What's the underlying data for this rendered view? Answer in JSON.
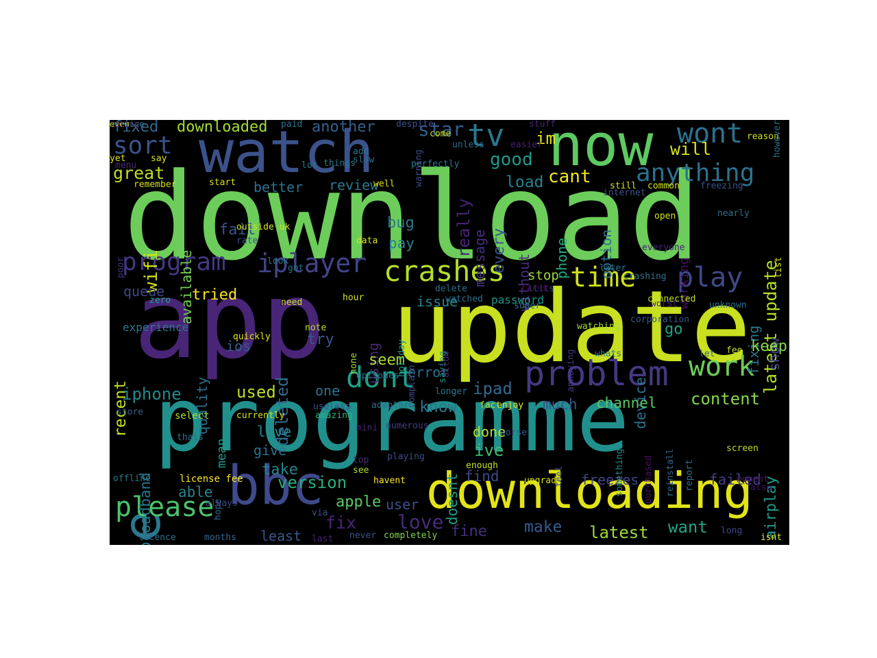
{
  "colors": {
    "background": "#000000",
    "page": "#ffffff"
  },
  "words": [
    {
      "text": "download",
      "color": "#6ccd5a"
    },
    {
      "text": "app",
      "color": "#482576"
    },
    {
      "text": "update",
      "color": "#c8e020"
    },
    {
      "text": "programme",
      "color": "#21908d"
    },
    {
      "text": "watch",
      "color": "#3b528b"
    },
    {
      "text": "now",
      "color": "#5ec962"
    },
    {
      "text": "downloading",
      "color": "#e2e418"
    },
    {
      "text": "bbc",
      "color": "#3e4a89"
    },
    {
      "text": "use",
      "color": "#2a788e"
    },
    {
      "text": "problem",
      "color": "#443983"
    },
    {
      "text": "crashes",
      "color": "#b5de2b"
    },
    {
      "text": "iplayer",
      "color": "#414487"
    },
    {
      "text": "program",
      "color": "#453781"
    },
    {
      "text": "time",
      "color": "#d0e11c"
    },
    {
      "text": "play",
      "color": "#3e4989"
    },
    {
      "text": "please",
      "color": "#4ac16d"
    },
    {
      "text": "dont",
      "color": "#1fa188"
    },
    {
      "text": "work",
      "color": "#6ece58"
    },
    {
      "text": "tv",
      "color": "#2a768e"
    },
    {
      "text": "wont",
      "color": "#2d708e"
    },
    {
      "text": "anything",
      "color": "#2c718e"
    },
    {
      "text": "latest update",
      "color": "#b5de2b"
    },
    {
      "text": "airplay",
      "color": "#1f9a8a"
    },
    {
      "text": "sort",
      "color": "#3b528b"
    },
    {
      "text": "fixed",
      "color": "#31688e"
    },
    {
      "text": "downloaded",
      "color": "#a5db36"
    },
    {
      "text": "another",
      "color": "#34608d"
    },
    {
      "text": "star",
      "color": "#355f8d"
    },
    {
      "text": "im",
      "color": "#e5e419"
    },
    {
      "text": "good",
      "color": "#1f988b"
    },
    {
      "text": "will",
      "color": "#d5e21a"
    },
    {
      "text": "great",
      "color": "#c0df25"
    },
    {
      "text": "cant",
      "color": "#f1e51d"
    },
    {
      "text": "load",
      "color": "#26828e"
    },
    {
      "text": "review",
      "color": "#2a788e"
    },
    {
      "text": "better",
      "color": "#2d718e"
    },
    {
      "text": "really",
      "color": "#482475"
    },
    {
      "text": "message",
      "color": "#46307e"
    },
    {
      "text": "every",
      "color": "#3a548c"
    },
    {
      "text": "without",
      "color": "#472d7b"
    },
    {
      "text": "phone",
      "color": "#22a785"
    },
    {
      "text": "option",
      "color": "#2e6e8e"
    },
    {
      "text": "working",
      "color": "#471365"
    },
    {
      "text": "available",
      "color": "#75d054"
    },
    {
      "text": "wifi",
      "color": "#d2e21b"
    },
    {
      "text": "fail",
      "color": "#3b528b"
    },
    {
      "text": "bug",
      "color": "#2a788e"
    },
    {
      "text": "pay",
      "color": "#27808e"
    },
    {
      "text": "stop",
      "color": "#9dd93b"
    },
    {
      "text": "queue",
      "color": "#3f4788"
    },
    {
      "text": "tried",
      "color": "#fde725"
    },
    {
      "text": "issue",
      "color": "#24878e"
    },
    {
      "text": "password",
      "color": "#1f968b"
    },
    {
      "text": "using",
      "color": "#482878"
    },
    {
      "text": "fixing",
      "color": "#2a788e"
    },
    {
      "text": "show",
      "color": "#414487"
    },
    {
      "text": "recent",
      "color": "#c2df23"
    },
    {
      "text": "quality",
      "color": "#2c728e"
    },
    {
      "text": "deleted",
      "color": "#31678e"
    },
    {
      "text": "device",
      "color": "#2c718e"
    },
    {
      "text": "go",
      "color": "#20a386"
    },
    {
      "text": "keep",
      "color": "#86d549"
    },
    {
      "text": "ios",
      "color": "#355e8d"
    },
    {
      "text": "try",
      "color": "#39568c"
    },
    {
      "text": "seem",
      "color": "#addc30"
    },
    {
      "text": "iphone",
      "color": "#23898e"
    },
    {
      "text": "used",
      "color": "#bddf26"
    },
    {
      "text": "one",
      "color": "#2c718e"
    },
    {
      "text": "error",
      "color": "#2f6c8e"
    },
    {
      "text": "know",
      "color": "#2b758e"
    },
    {
      "text": "ipad",
      "color": "#31688e"
    },
    {
      "text": "doesnt",
      "color": "#1f9e89"
    },
    {
      "text": "channel",
      "color": "#5ac864"
    },
    {
      "text": "content",
      "color": "#86d549"
    },
    {
      "text": "much",
      "color": "#3b528b"
    },
    {
      "text": "broadband",
      "color": "#2a788e"
    },
    {
      "text": "mean",
      "color": "#1f9e89"
    },
    {
      "text": "live",
      "color": "#25848e"
    },
    {
      "text": "give",
      "color": "#2c718e"
    },
    {
      "text": "take",
      "color": "#24868e"
    },
    {
      "text": "done",
      "color": "#bddf26"
    },
    {
      "text": "ive",
      "color": "#40bd72"
    },
    {
      "text": "find",
      "color": "#3e4a89"
    },
    {
      "text": "freezes",
      "color": "#404688"
    },
    {
      "text": "failed",
      "color": "#433e85"
    },
    {
      "text": "able",
      "color": "#25848e"
    },
    {
      "text": "version",
      "color": "#29af7f"
    },
    {
      "text": "apple",
      "color": "#5cc863"
    },
    {
      "text": "user",
      "color": "#3b528b"
    },
    {
      "text": "fix",
      "color": "#482677"
    },
    {
      "text": "love",
      "color": "#472c7a"
    },
    {
      "text": "fine",
      "color": "#472f7d"
    },
    {
      "text": "make",
      "color": "#365c8d"
    },
    {
      "text": "latest",
      "color": "#a0da39"
    },
    {
      "text": "want",
      "color": "#20a486"
    },
    {
      "text": "least",
      "color": "#38588c"
    },
    {
      "text": "license fee",
      "color": "#fde725"
    },
    {
      "text": "hope",
      "color": "#31688e"
    },
    {
      "text": "always",
      "color": "#3f4889"
    },
    {
      "text": "licence",
      "color": "#2d708e"
    },
    {
      "text": "months",
      "color": "#31688e"
    },
    {
      "text": "last",
      "color": "#482173"
    },
    {
      "text": "never",
      "color": "#3a538b"
    },
    {
      "text": "completely",
      "color": "#84d44b"
    },
    {
      "text": "long",
      "color": "#404688"
    },
    {
      "text": "isnt",
      "color": "#e5e419"
    },
    {
      "text": "offline",
      "color": "#2a778e"
    },
    {
      "text": "via",
      "color": "#3b528b"
    },
    {
      "text": "upgrade",
      "color": "#d8e219"
    },
    {
      "text": "havent",
      "color": "#fde725"
    },
    {
      "text": "enough",
      "color": "#c5e021"
    },
    {
      "text": "see",
      "color": "#b0dd2f"
    },
    {
      "text": "top",
      "color": "#482979"
    },
    {
      "text": "playing",
      "color": "#3e4a89"
    },
    {
      "text": "screen",
      "color": "#bddf26"
    },
    {
      "text": "moment",
      "color": "#48186a"
    },
    {
      "text": "also",
      "color": "#471063"
    },
    {
      "text": "worse",
      "color": "#38588c"
    },
    {
      "text": "store",
      "color": "#365d8d"
    },
    {
      "text": "thats",
      "color": "#2c718e"
    },
    {
      "text": "select",
      "color": "#addc30"
    },
    {
      "text": "currently",
      "color": "#d2e21b"
    },
    {
      "text": "amazing",
      "color": "#2fb47c"
    },
    {
      "text": "useless",
      "color": "#3b528b"
    },
    {
      "text": "numerous",
      "color": "#433e85"
    },
    {
      "text": "mini",
      "color": "#482475"
    },
    {
      "text": "adaptor",
      "color": "#2d708e"
    },
    {
      "text": "enjoy",
      "color": "#e5e419"
    },
    {
      "text": "fact",
      "color": "#b5de2b"
    },
    {
      "text": "feel",
      "color": "#3b528b"
    },
    {
      "text": "something",
      "color": "#228c8d"
    },
    {
      "text": "purchased",
      "color": "#471365"
    },
    {
      "text": "reinstall",
      "color": "#31688e"
    },
    {
      "text": "report",
      "color": "#2c718e"
    },
    {
      "text": "experience",
      "color": "#2a788e"
    },
    {
      "text": "quickly",
      "color": "#e5e419"
    },
    {
      "text": "note",
      "color": "#bddf26"
    },
    {
      "text": "none",
      "color": "#9fda3a"
    },
    {
      "text": "holiday",
      "color": "#1f9a8a"
    },
    {
      "text": "complain",
      "color": "#3e4a89"
    },
    {
      "text": "episodes",
      "color": "#2d708e"
    },
    {
      "text": "longer",
      "color": "#2a778e"
    },
    {
      "text": "saying",
      "color": "#1f968b"
    },
    {
      "text": "allow",
      "color": "#482979"
    },
    {
      "text": "annoying",
      "color": "#443983"
    },
    {
      "text": "watching",
      "color": "#a5db36"
    },
    {
      "text": "whats",
      "color": "#2a788e"
    },
    {
      "text": "fee",
      "color": "#c2df23"
    },
    {
      "text": "let",
      "color": "#355f8d"
    },
    {
      "text": "zero",
      "color": "#1fa188"
    },
    {
      "text": "need",
      "color": "#c8e020"
    },
    {
      "text": "hour",
      "color": "#d0e11c"
    },
    {
      "text": "watched",
      "color": "#2c718e"
    },
    {
      "text": "delete",
      "color": "#2d708e"
    },
    {
      "text": "itits",
      "color": "#3f4788"
    },
    {
      "text": "super",
      "color": "#2a778e"
    },
    {
      "text": "worst",
      "color": "#482878"
    },
    {
      "text": "unknown",
      "color": "#2d708e"
    },
    {
      "text": "connected",
      "color": "#c2df23"
    },
    {
      "text": "crashing",
      "color": "#2c718e"
    },
    {
      "text": "first",
      "color": "#440154"
    },
    {
      "text": "later",
      "color": "#2a778e"
    },
    {
      "text": "outside uk",
      "color": "#d8e219"
    },
    {
      "text": "rate",
      "color": "#3b528b"
    },
    {
      "text": "data",
      "color": "#d8e219"
    },
    {
      "text": "look",
      "color": "#2c718e"
    },
    {
      "text": "got",
      "color": "#2d708e"
    },
    {
      "text": "poor",
      "color": "#46337f"
    },
    {
      "text": "everyone",
      "color": "#482475"
    },
    {
      "text": "corporation",
      "color": "#39568c"
    },
    {
      "text": "list",
      "color": "#d8e219"
    },
    {
      "text": "open",
      "color": "#d2e21b"
    },
    {
      "text": "nearly",
      "color": "#2d708e"
    },
    {
      "text": "freezing",
      "color": "#3b528b"
    },
    {
      "text": "still",
      "color": "#d8e219"
    },
    {
      "text": "common",
      "color": "#d2e21b"
    },
    {
      "text": "internet",
      "color": "#3b528b"
    },
    {
      "text": "easier",
      "color": "#482173"
    },
    {
      "text": "stuff",
      "color": "#482677"
    },
    {
      "text": "reason",
      "color": "#d2e21b"
    },
    {
      "text": "however",
      "color": "#2d708e"
    },
    {
      "text": "well",
      "color": "#d8e219"
    },
    {
      "text": "perfectly",
      "color": "#2a788e"
    },
    {
      "text": "warning",
      "color": "#3e4a89"
    },
    {
      "text": "add",
      "color": "#2c718e"
    },
    {
      "text": "slow",
      "color": "#2d708e"
    },
    {
      "text": "despite",
      "color": "#3b528b"
    },
    {
      "text": "come",
      "color": "#c8e020"
    },
    {
      "text": "things",
      "color": "#2a788e"
    },
    {
      "text": "lot",
      "color": "#2a788e"
    },
    {
      "text": "unless",
      "color": "#2d708e"
    },
    {
      "text": "paid",
      "color": "#2c718e"
    },
    {
      "text": "yet",
      "color": "#d8e219"
    },
    {
      "text": "say",
      "color": "#d2e21b"
    },
    {
      "text": "menu",
      "color": "#482878"
    },
    {
      "text": "start",
      "color": "#d8e219"
    },
    {
      "text": "remember",
      "color": "#d2e21b"
    },
    {
      "text": "service",
      "color": "#2a788e"
    },
    {
      "text": "even",
      "color": "#d8e219"
    },
    {
      "text": "rating",
      "color": "#482475"
    }
  ]
}
